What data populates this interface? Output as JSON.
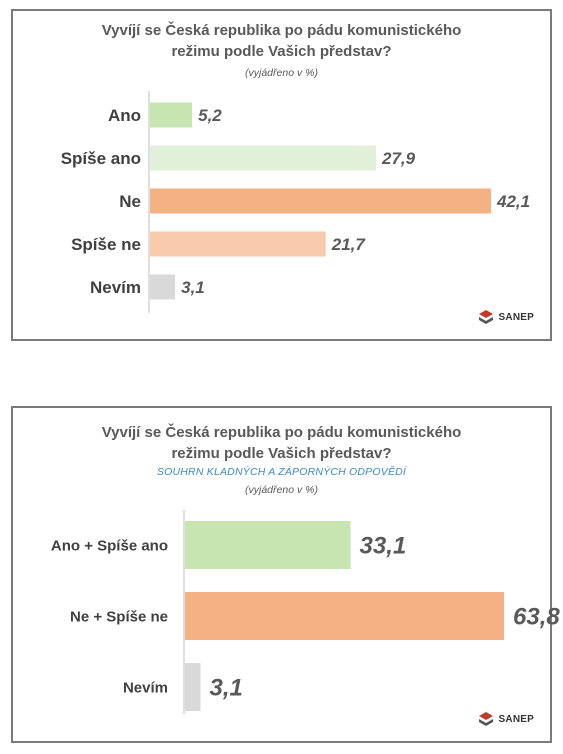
{
  "panels": [
    {
      "title_line1": "Vyvíjí se Česká republika po pádu komunistického",
      "title_line2": "režimu podle Vašich představ?",
      "subtitle": "",
      "unit_note": "(vyjádřeno v %)",
      "logo_text": "SANEP"
    },
    {
      "title_line1": "Vyvíjí se Česká republika po pádu komunistického",
      "title_line2": "režimu podle Vašich představ?",
      "subtitle": "SOUHRN KLADNÝCH A ZÁPORNÝCH ODPOVĚDÍ",
      "unit_note": "(vyjádřeno v %)",
      "logo_text": "SANEP"
    }
  ],
  "chart_data": [
    {
      "type": "bar",
      "orientation": "horizontal",
      "categories": [
        "Ano",
        "Spíše ano",
        "Ne",
        "Spíše ne",
        "Nevím"
      ],
      "values": [
        5.2,
        27.9,
        42.1,
        21.7,
        3.1
      ],
      "value_labels": [
        "5,2",
        "27,9",
        "42,1",
        "21,7",
        "3,1"
      ],
      "colors": [
        "#c6e5b1",
        "#e2f0d9",
        "#f4b183",
        "#f8cbad",
        "#d9d9d9"
      ],
      "xlim": [
        0,
        50
      ],
      "grid": false,
      "legend": "none"
    },
    {
      "type": "bar",
      "orientation": "horizontal",
      "categories": [
        "Ano + Spíše ano",
        "Ne + Spíše ne",
        "Nevím"
      ],
      "values": [
        33.1,
        63.8,
        3.1
      ],
      "value_labels": [
        "33,1",
        "63,8",
        "3,1"
      ],
      "colors": [
        "#c6e5b1",
        "#f4b183",
        "#d9d9d9"
      ],
      "xlim": [
        0,
        70
      ],
      "grid": false,
      "legend": "none"
    }
  ]
}
